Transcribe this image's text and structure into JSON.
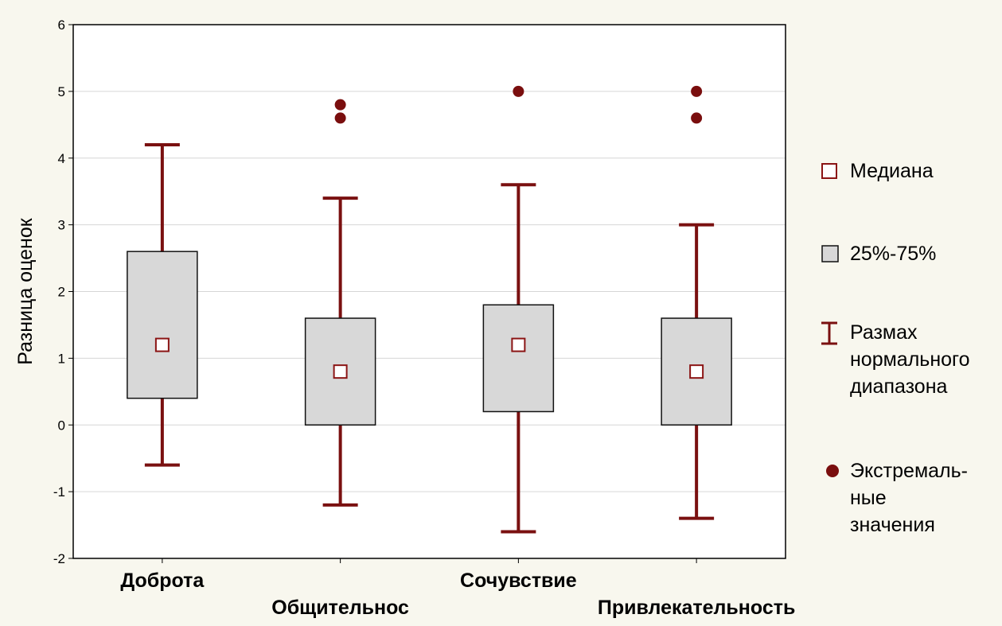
{
  "chart_data": {
    "type": "boxplot",
    "ylabel": "Разница оценок",
    "xlabel": "",
    "ylim": [
      -2,
      6
    ],
    "yticks": [
      -2,
      -1,
      0,
      1,
      2,
      3,
      4,
      5,
      6
    ],
    "grid": true,
    "legend_position": "right",
    "colors": {
      "whisker": "#7a1010",
      "median": "#8b1414",
      "box_fill": "#d8d8d8",
      "box_stroke": "#111111",
      "outlier": "#7a0e0e",
      "grid": "#d6d6d6",
      "plot_bg": "#ffffff",
      "page_bg": "#f8f7ee"
    },
    "categories": [
      "Доброта",
      "Общительнос",
      "Сочувствие",
      "Привлекательность"
    ],
    "boxes": [
      {
        "category": "Доброта",
        "whisker_low": -0.6,
        "q1": 0.4,
        "median": 1.2,
        "q3": 2.6,
        "whisker_high": 4.2,
        "outliers": []
      },
      {
        "category": "Общительнос",
        "whisker_low": -1.2,
        "q1": 0.0,
        "median": 0.8,
        "q3": 1.6,
        "whisker_high": 3.4,
        "outliers": [
          4.6,
          4.8
        ]
      },
      {
        "category": "Сочувствие",
        "whisker_low": -1.6,
        "q1": 0.2,
        "median": 1.2,
        "q3": 1.8,
        "whisker_high": 3.6,
        "outliers": [
          5.0
        ]
      },
      {
        "category": "Привлекательность",
        "whisker_low": -1.4,
        "q1": 0.0,
        "median": 0.8,
        "q3": 1.6,
        "whisker_high": 3.0,
        "outliers": [
          4.6,
          5.0
        ]
      }
    ],
    "legend": [
      {
        "symbol": "median",
        "lines": [
          "Медиана"
        ]
      },
      {
        "symbol": "box",
        "lines": [
          "25%-75%"
        ]
      },
      {
        "symbol": "whisker",
        "lines": [
          "Размах",
          "нормального",
          "диапазона"
        ]
      },
      {
        "symbol": "outlier",
        "lines": [
          "Экстремаль-",
          "ные",
          "значения"
        ]
      }
    ]
  }
}
